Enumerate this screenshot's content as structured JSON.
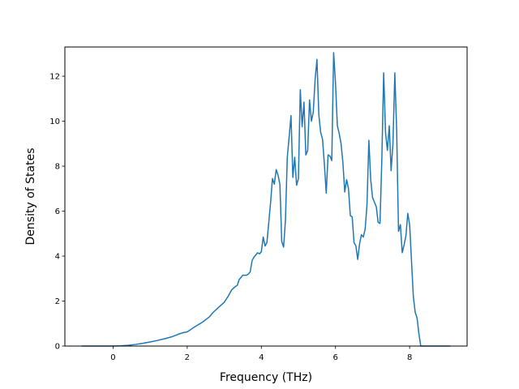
{
  "chart_data": {
    "type": "line",
    "title": "",
    "xlabel": "Frequency (THz)",
    "ylabel": "Density of States",
    "xlim": [
      -1.3,
      9.55
    ],
    "ylim": [
      0,
      13.3
    ],
    "xticks": [
      0,
      2,
      4,
      6,
      8
    ],
    "yticks": [
      0,
      2,
      4,
      6,
      8,
      10,
      12
    ],
    "grid": false,
    "legend": "none",
    "series": [
      {
        "color": "#1f77b4",
        "x": [
          -0.85,
          -0.4,
          0,
          0.2,
          0.4,
          0.6,
          0.8,
          1.0,
          1.2,
          1.4,
          1.6,
          1.8,
          1.9,
          2.0,
          2.2,
          2.4,
          2.6,
          2.7,
          2.8,
          3.0,
          3.1,
          3.2,
          3.3,
          3.35,
          3.4,
          3.5,
          3.6,
          3.65,
          3.7,
          3.75,
          3.8,
          3.85,
          3.9,
          3.95,
          4.0,
          4.05,
          4.1,
          4.15,
          4.2,
          4.25,
          4.3,
          4.35,
          4.4,
          4.45,
          4.5,
          4.55,
          4.6,
          4.65,
          4.7,
          4.75,
          4.8,
          4.85,
          4.9,
          4.95,
          5.0,
          5.05,
          5.1,
          5.15,
          5.2,
          5.25,
          5.3,
          5.35,
          5.4,
          5.45,
          5.5,
          5.55,
          5.6,
          5.65,
          5.7,
          5.75,
          5.8,
          5.85,
          5.9,
          5.95,
          6.0,
          6.05,
          6.1,
          6.15,
          6.2,
          6.25,
          6.3,
          6.35,
          6.4,
          6.45,
          6.5,
          6.55,
          6.6,
          6.65,
          6.7,
          6.75,
          6.8,
          6.85,
          6.9,
          6.95,
          7.0,
          7.05,
          7.1,
          7.15,
          7.2,
          7.25,
          7.3,
          7.35,
          7.4,
          7.45,
          7.5,
          7.55,
          7.6,
          7.65,
          7.7,
          7.75,
          7.8,
          7.85,
          7.9,
          7.95,
          8.0,
          8.05,
          8.1,
          8.15,
          8.2,
          8.25,
          8.3,
          8.5,
          8.8,
          9.1
        ],
        "y": [
          0,
          0,
          0,
          0.01,
          0.03,
          0.07,
          0.12,
          0.18,
          0.25,
          0.33,
          0.42,
          0.55,
          0.6,
          0.63,
          0.85,
          1.05,
          1.3,
          1.5,
          1.65,
          1.95,
          2.2,
          2.5,
          2.65,
          2.7,
          2.95,
          3.15,
          3.15,
          3.2,
          3.3,
          3.8,
          3.95,
          4.05,
          4.15,
          4.1,
          4.2,
          4.85,
          4.45,
          4.6,
          5.5,
          6.4,
          7.45,
          7.2,
          7.85,
          7.6,
          7.2,
          4.65,
          4.4,
          5.6,
          8.4,
          9.3,
          10.25,
          7.5,
          8.4,
          7.15,
          7.45,
          11.4,
          9.75,
          10.85,
          8.5,
          8.7,
          10.95,
          10.0,
          10.4,
          11.85,
          12.75,
          10.3,
          9.5,
          9.2,
          8.1,
          6.8,
          8.5,
          8.45,
          8.25,
          13.05,
          11.7,
          9.8,
          9.45,
          9.0,
          8.15,
          6.85,
          7.4,
          7.0,
          5.8,
          5.75,
          4.6,
          4.45,
          3.85,
          4.55,
          4.95,
          4.85,
          5.2,
          6.3,
          9.15,
          7.4,
          6.6,
          6.4,
          6.2,
          5.5,
          5.45,
          8.3,
          12.15,
          9.5,
          8.7,
          9.8,
          7.8,
          9.0,
          12.15,
          9.6,
          5.1,
          5.4,
          4.15,
          4.5,
          4.9,
          5.9,
          5.4,
          3.8,
          2.2,
          1.5,
          1.25,
          0.55,
          0,
          0,
          0,
          0
        ]
      }
    ]
  }
}
